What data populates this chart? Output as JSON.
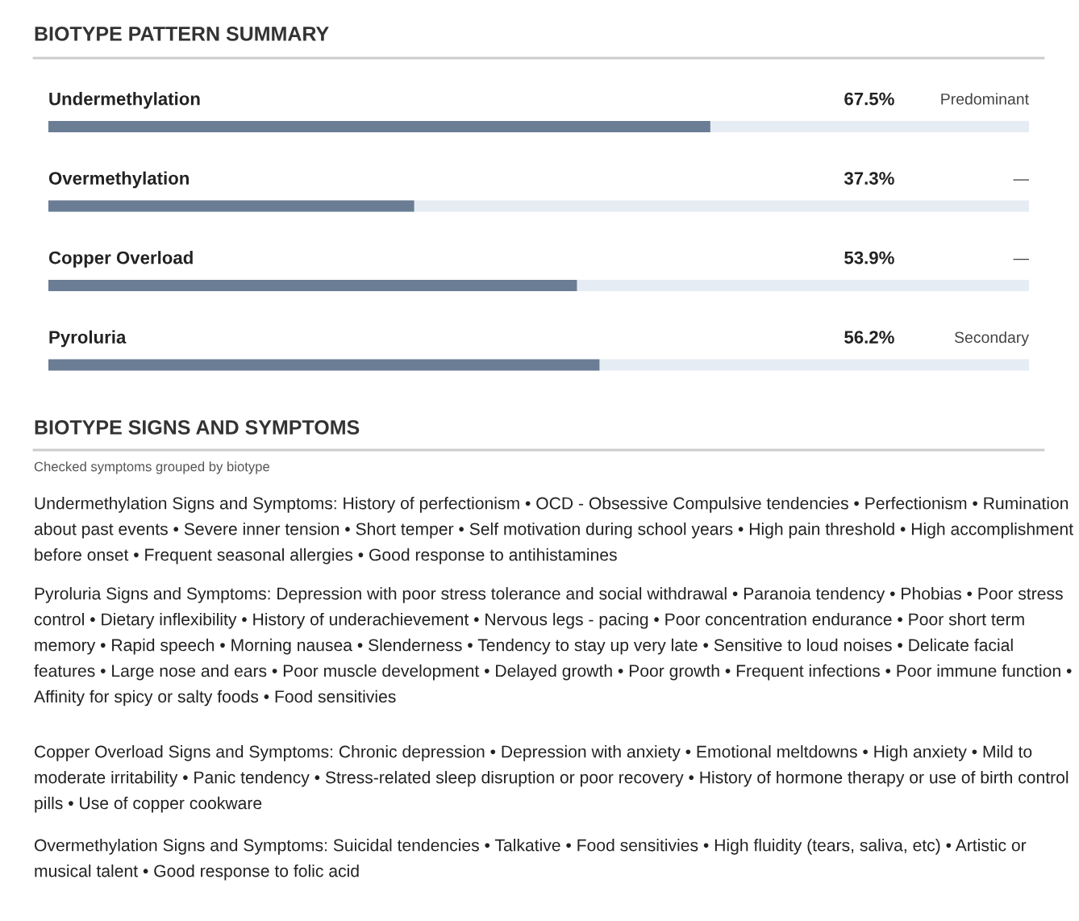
{
  "chart_data": {
    "type": "bar",
    "orientation": "horizontal",
    "title": "BIOTYPE PATTERN SUMMARY",
    "subtitle": "BIOTYPE SIGNS AND SYMPTOMS",
    "categories": [
      "Undermethylation",
      "Overmethylation",
      "Copper Overload",
      "Pyroluria"
    ],
    "values": [
      67.5,
      37.3,
      53.9,
      56.2
    ],
    "value_labels": [
      "67.5%",
      "37.3%",
      "53.9%",
      "56.2%"
    ],
    "color": "#6b7d95",
    "xlim": [
      0,
      100
    ],
    "annotations": [
      "Predominant",
      "—",
      "—",
      "Secondary",
      "Checked symptoms grouped by biotype",
      "Undermethylation Signs and Symptoms: History of perfectionism • OCD - Obsessive Compulsive tendencies • Perfectionism • Rumination about past events • Severe inner tension • Short temper • Self motivation during school years • High pain threshold • High accomplishment before onset • Frequent seasonal allergies • Good response to antihistamines",
      "Pyroluria Signs and Symptoms: Depression with poor stress tolerance and social withdrawal • Paranoia tendency • Phobias • Poor stress control • Dietary inflexibility • History of underachievement • Nervous legs - pacing • Poor concentration endurance • Poor short term memory • Rapid speech • Morning nausea • Slenderness • Tendency to stay up very late • Sensitive to loud noises • Delicate facial features • Large nose and ears • Poor muscle development • Delayed growth • Poor growth • Frequent infections • Poor immune function • Affinity for spicy or salty foods • Food sensitivies",
      "Copper Overload Signs and Symptoms: Chronic depression • Depression with anxiety • Emotional meltdowns • High anxiety • Mild to moderate irritability • Panic tendency • Stress-related sleep disruption or poor recovery • History of hormone therapy or use of birth control pills • Use of copper cookware",
      "Overmethylation Signs and Symptoms: Suicidal tendencies • Talkative • Food sensitivies • High fluidity (tears, saliva, etc) • Artistic or musical talent • Good response to folic acid"
    ]
  }
}
